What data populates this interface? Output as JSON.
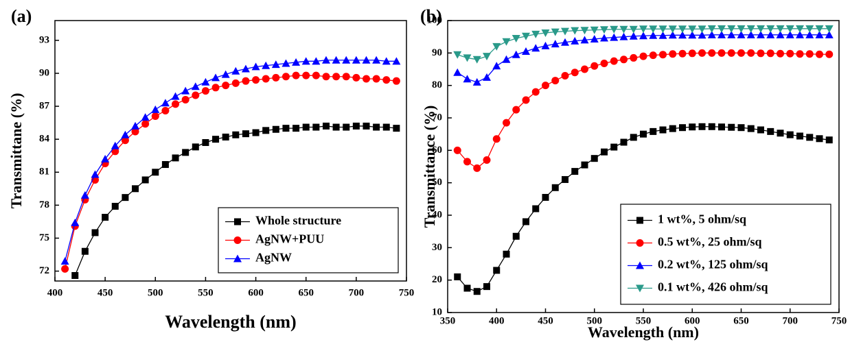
{
  "chart_data": [
    {
      "type": "line",
      "panel_label": "(a)",
      "x_label": "Wavelength (nm)",
      "y_label": "Transmittane (%)",
      "xlim": [
        400,
        750
      ],
      "xticks": [
        400,
        450,
        500,
        550,
        600,
        650,
        700,
        750
      ],
      "ylim": [
        71.1,
        94.8
      ],
      "yticks": [
        72,
        75,
        78,
        81,
        84,
        87,
        90,
        93
      ],
      "legend": "lower right",
      "x": [
        410,
        420,
        430,
        440,
        450,
        460,
        470,
        480,
        490,
        500,
        510,
        520,
        530,
        540,
        550,
        560,
        570,
        580,
        590,
        600,
        610,
        620,
        630,
        640,
        650,
        660,
        670,
        680,
        690,
        700,
        710,
        720,
        730,
        740
      ],
      "series": [
        {
          "name": "Whole structure",
          "color": "#000000",
          "marker": "square",
          "values": [
            null,
            71.6,
            73.8,
            75.5,
            76.9,
            77.9,
            78.7,
            79.5,
            80.3,
            81.0,
            81.7,
            82.3,
            82.8,
            83.3,
            83.7,
            84.0,
            84.2,
            84.4,
            84.5,
            84.6,
            84.8,
            84.9,
            85.0,
            85.0,
            85.1,
            85.1,
            85.2,
            85.1,
            85.1,
            85.2,
            85.2,
            85.1,
            85.1,
            85.0
          ]
        },
        {
          "name": "AgNW+PUU",
          "color": "#ff0000",
          "marker": "circle",
          "values": [
            72.2,
            76.1,
            78.5,
            80.3,
            81.8,
            82.9,
            83.9,
            84.7,
            85.4,
            86.1,
            86.6,
            87.2,
            87.6,
            88.0,
            88.4,
            88.7,
            88.9,
            89.1,
            89.3,
            89.4,
            89.5,
            89.6,
            89.7,
            89.8,
            89.8,
            89.8,
            89.7,
            89.7,
            89.7,
            89.6,
            89.5,
            89.5,
            89.4,
            89.3
          ]
        },
        {
          "name": "AgNW",
          "color": "#0000ff",
          "marker": "triangle-up",
          "values": [
            72.9,
            76.4,
            78.9,
            80.8,
            82.2,
            83.4,
            84.4,
            85.2,
            86.0,
            86.7,
            87.3,
            87.9,
            88.4,
            88.8,
            89.2,
            89.6,
            89.9,
            90.2,
            90.4,
            90.6,
            90.7,
            90.8,
            90.9,
            91.0,
            91.1,
            91.1,
            91.2,
            91.2,
            91.2,
            91.2,
            91.2,
            91.2,
            91.1,
            91.1
          ]
        }
      ]
    },
    {
      "type": "line",
      "panel_label": "(b)",
      "x_label": "Wavelength (nm)",
      "y_label": "Transmittance (%)",
      "xlim": [
        350,
        750
      ],
      "xticks": [
        350,
        400,
        450,
        500,
        550,
        600,
        650,
        700,
        750
      ],
      "ylim": [
        10,
        100
      ],
      "yticks": [
        10,
        20,
        30,
        40,
        50,
        60,
        70,
        80,
        90,
        100
      ],
      "legend": "lower right",
      "x": [
        360,
        370,
        380,
        390,
        400,
        410,
        420,
        430,
        440,
        450,
        460,
        470,
        480,
        490,
        500,
        510,
        520,
        530,
        540,
        550,
        560,
        570,
        580,
        590,
        600,
        610,
        620,
        630,
        640,
        650,
        660,
        670,
        680,
        690,
        700,
        710,
        720,
        730,
        740
      ],
      "series": [
        {
          "name": "1 wt%, 5 ohm/sq",
          "color": "#000000",
          "marker": "square",
          "values": [
            21,
            17.5,
            16.5,
            18,
            23,
            28,
            33.5,
            38,
            42,
            45.5,
            48.5,
            51,
            53.5,
            55.5,
            57.5,
            59.5,
            61,
            62.5,
            64,
            65,
            65.8,
            66.3,
            66.7,
            67,
            67.2,
            67.3,
            67.3,
            67.2,
            67.1,
            67,
            66.7,
            66.3,
            65.8,
            65.3,
            64.8,
            64.4,
            64,
            63.6,
            63.2
          ]
        },
        {
          "name": "0.5 wt%, 25 ohm/sq",
          "color": "#ff0000",
          "marker": "circle",
          "values": [
            60,
            56.5,
            54.5,
            57,
            63.5,
            68.5,
            72.5,
            75.5,
            78,
            80,
            81.5,
            83,
            84,
            85,
            86,
            86.8,
            87.5,
            88,
            88.5,
            89,
            89.3,
            89.5,
            89.7,
            89.8,
            89.9,
            90,
            90,
            90,
            90,
            90,
            90,
            89.9,
            89.9,
            89.8,
            89.8,
            89.7,
            89.7,
            89.6,
            89.6
          ]
        },
        {
          "name": "0.2 wt%, 125 ohm/sq",
          "color": "#0000ff",
          "marker": "triangle-up",
          "values": [
            84,
            82,
            81,
            82.5,
            86,
            88,
            89.5,
            90.5,
            91.5,
            92.2,
            92.8,
            93.3,
            93.7,
            94,
            94.3,
            94.6,
            94.8,
            95,
            95.2,
            95.3,
            95.4,
            95.4,
            95.5,
            95.5,
            95.5,
            95.5,
            95.6,
            95.6,
            95.6,
            95.6,
            95.6,
            95.6,
            95.6,
            95.6,
            95.6,
            95.6,
            95.6,
            95.6,
            95.6
          ]
        },
        {
          "name": "0.1 wt%, 426 ohm/sq",
          "color": "#2a9a8a",
          "marker": "triangle-down",
          "values": [
            89.5,
            88.5,
            88,
            89,
            92,
            93.5,
            94.5,
            95.2,
            95.8,
            96.2,
            96.5,
            96.7,
            96.9,
            97,
            97.1,
            97.2,
            97.3,
            97.3,
            97.3,
            97.4,
            97.4,
            97.4,
            97.4,
            97.4,
            97.4,
            97.4,
            97.5,
            97.5,
            97.5,
            97.5,
            97.5,
            97.5,
            97.5,
            97.5,
            97.5,
            97.5,
            97.5,
            97.5,
            97.5
          ]
        }
      ]
    }
  ]
}
